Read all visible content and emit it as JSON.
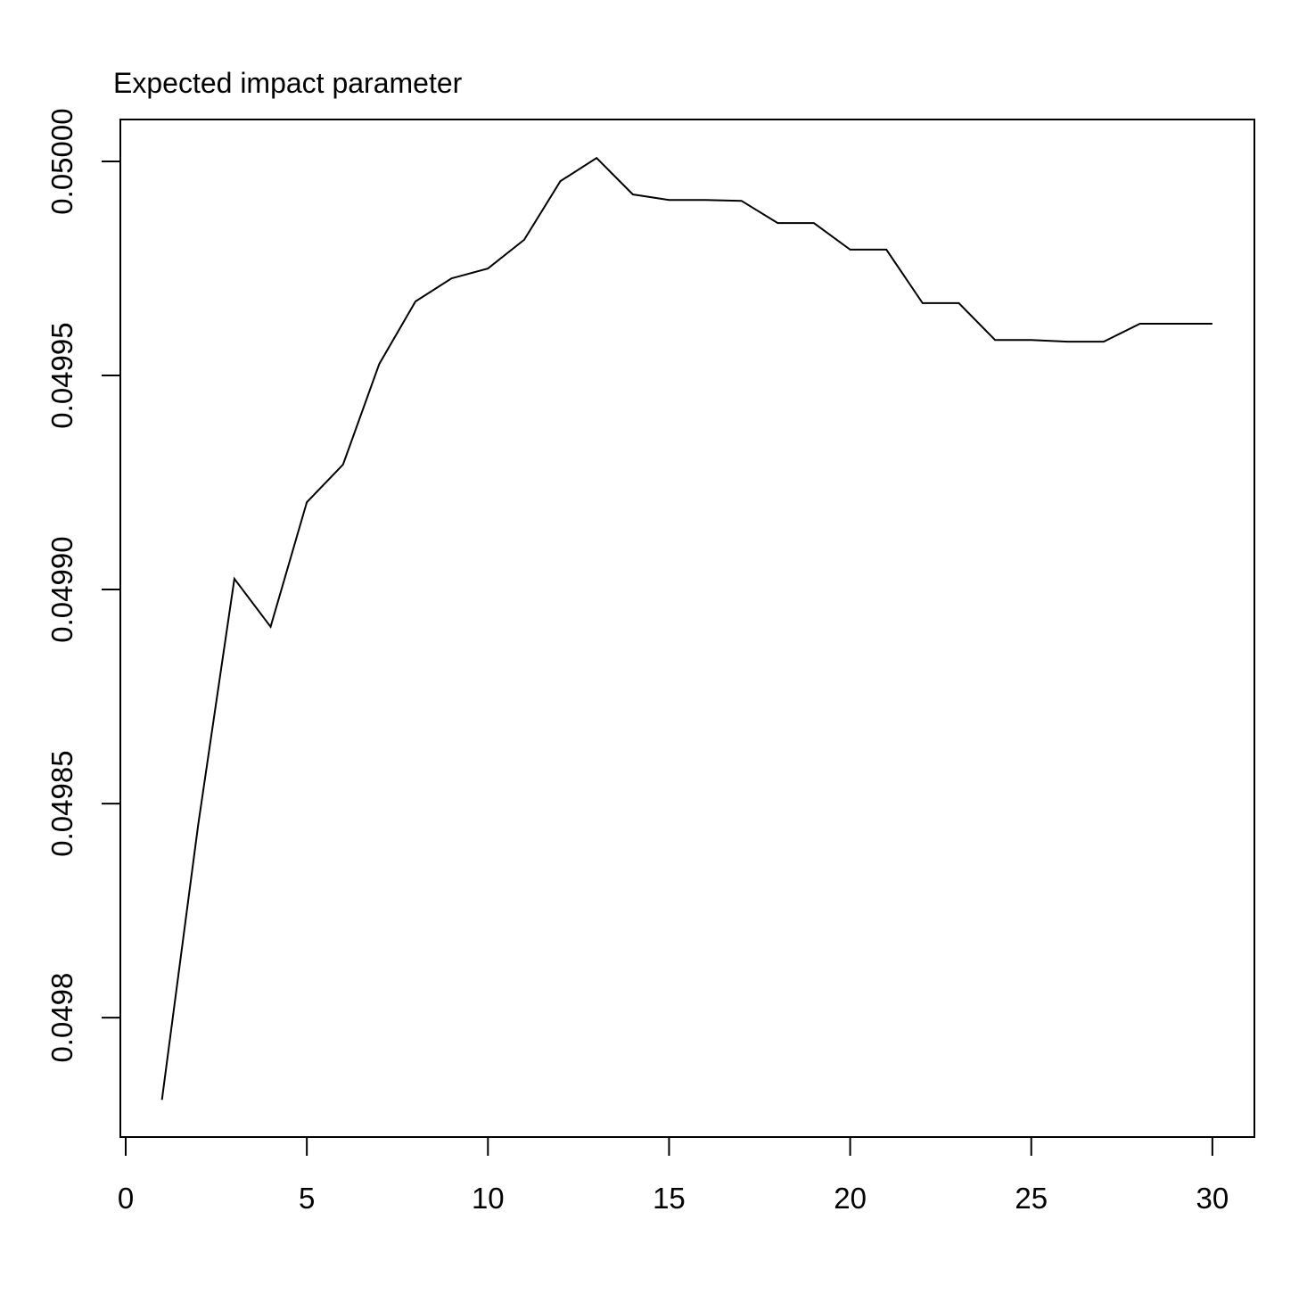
{
  "chart_data": {
    "type": "line",
    "title": "Expected impact parameter",
    "x": [
      1,
      2,
      3,
      4,
      5,
      6,
      7,
      8,
      9,
      10,
      11,
      12,
      13,
      14,
      15,
      16,
      17,
      18,
      19,
      20,
      21,
      22,
      23,
      24,
      25,
      26,
      27,
      28,
      29,
      30
    ],
    "series": [
      {
        "color": "#000000",
        "values": [
          0.0497808,
          0.049845,
          0.0499025,
          0.0498913,
          0.0499204,
          0.0499292,
          0.0499527,
          0.0499673,
          0.0499727,
          0.049975,
          0.0499817,
          0.0499954,
          0.0500008,
          0.0499923,
          0.049991,
          0.049991,
          0.0499908,
          0.0499856,
          0.0499856,
          0.0499794,
          0.0499794,
          0.0499669,
          0.0499669,
          0.0499583,
          0.0499583,
          0.0499579,
          0.0499579,
          0.0499621,
          0.0499621,
          0.0499621
        ]
      }
    ],
    "xlim": [
      -0.148,
      31.16
    ],
    "xticks": [
      0,
      5,
      10,
      15,
      20,
      25,
      30
    ],
    "ylim": [
      0.0497721,
      0.0500098
    ],
    "yticks": [
      {
        "value": 0.0498,
        "label": "0.0498"
      },
      {
        "value": 0.04985,
        "label": "0.04985"
      },
      {
        "value": 0.0499,
        "label": "0.04990"
      },
      {
        "value": 0.04995,
        "label": "0.04995"
      },
      {
        "value": 0.05,
        "label": "0.05000"
      }
    ]
  }
}
